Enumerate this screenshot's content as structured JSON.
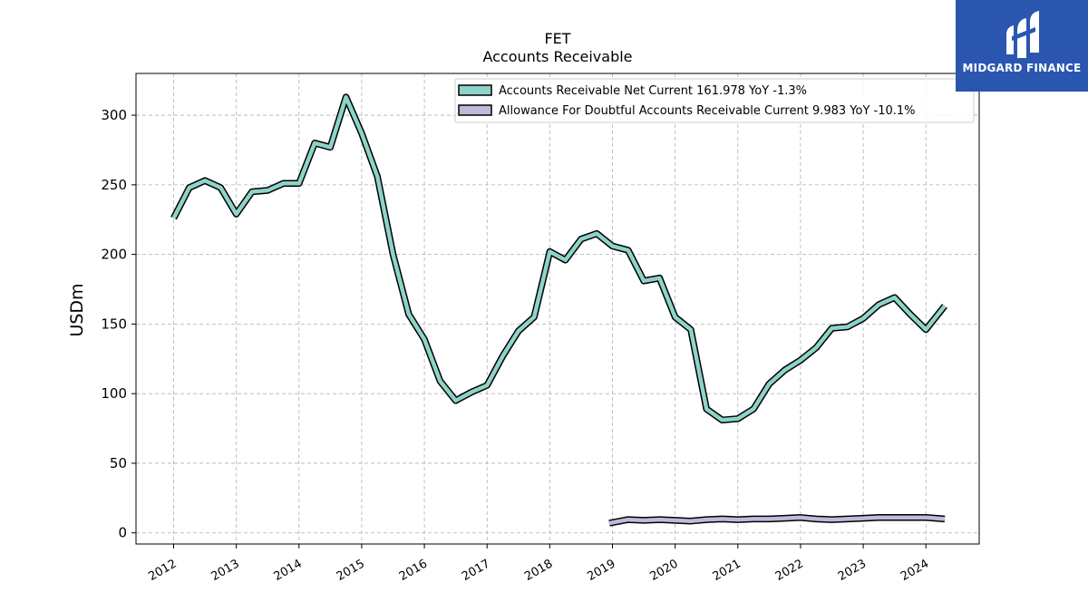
{
  "chart_data": {
    "type": "line",
    "title": "FET",
    "subtitle": "Accounts Receivable",
    "ylabel": "USDm",
    "xlabel": "",
    "ylim": [
      -8,
      330
    ],
    "xlim": [
      2011.4,
      2024.85
    ],
    "yticks": [
      0,
      50,
      100,
      150,
      200,
      250,
      300
    ],
    "xticks": [
      "2012",
      "2013",
      "2014",
      "2015",
      "2016",
      "2017",
      "2018",
      "2019",
      "2020",
      "2021",
      "2022",
      "2023",
      "2024"
    ],
    "grid": true,
    "legend_position": "top-right",
    "series": [
      {
        "name": "Accounts Receivable Net Current  161.978 YoY -1.3%",
        "color": "#8dd3c7",
        "x": [
          2012.0,
          2012.25,
          2012.5,
          2012.75,
          2013.0,
          2013.25,
          2013.5,
          2013.75,
          2014.0,
          2014.25,
          2014.5,
          2014.75,
          2015.0,
          2015.25,
          2015.5,
          2015.75,
          2016.0,
          2016.25,
          2016.5,
          2016.75,
          2017.0,
          2017.25,
          2017.5,
          2017.75,
          2018.0,
          2018.25,
          2018.5,
          2018.75,
          2019.0,
          2019.25,
          2019.5,
          2019.75,
          2020.0,
          2020.25,
          2020.5,
          2020.75,
          2021.0,
          2021.25,
          2021.5,
          2021.75,
          2022.0,
          2022.25,
          2022.5,
          2022.75,
          2023.0,
          2023.25,
          2023.5,
          2023.75,
          2024.0,
          2024.3
        ],
        "values": [
          226,
          248,
          253,
          248,
          229,
          245,
          246,
          251,
          251,
          280,
          277,
          313,
          287,
          256,
          200,
          157,
          139,
          109,
          95,
          101,
          106,
          127,
          145,
          155,
          202,
          196,
          211,
          215,
          206,
          203,
          181,
          183,
          155,
          146,
          89,
          81,
          82,
          89,
          107,
          117,
          124,
          133,
          147,
          148,
          154,
          164,
          169,
          157,
          146,
          163
        ]
      },
      {
        "name": "Allowance For Doubtful Accounts Receivable Current  9.983 YoY -10.1%",
        "color": "#bebada",
        "x": [
          2018.95,
          2019.25,
          2019.5,
          2019.75,
          2020.0,
          2020.25,
          2020.5,
          2020.75,
          2021.0,
          2021.25,
          2021.5,
          2021.75,
          2022.0,
          2022.25,
          2022.5,
          2022.75,
          2023.0,
          2023.25,
          2023.5,
          2023.75,
          2024.0,
          2024.3
        ],
        "values": [
          7,
          9.5,
          9,
          9.5,
          9,
          8.5,
          9.5,
          10,
          9.5,
          10,
          10,
          10.5,
          11,
          10,
          9.5,
          10,
          10.5,
          11,
          11,
          11,
          11,
          10
        ]
      }
    ]
  },
  "logo": {
    "text": "MIDGARD FINANCE"
  }
}
